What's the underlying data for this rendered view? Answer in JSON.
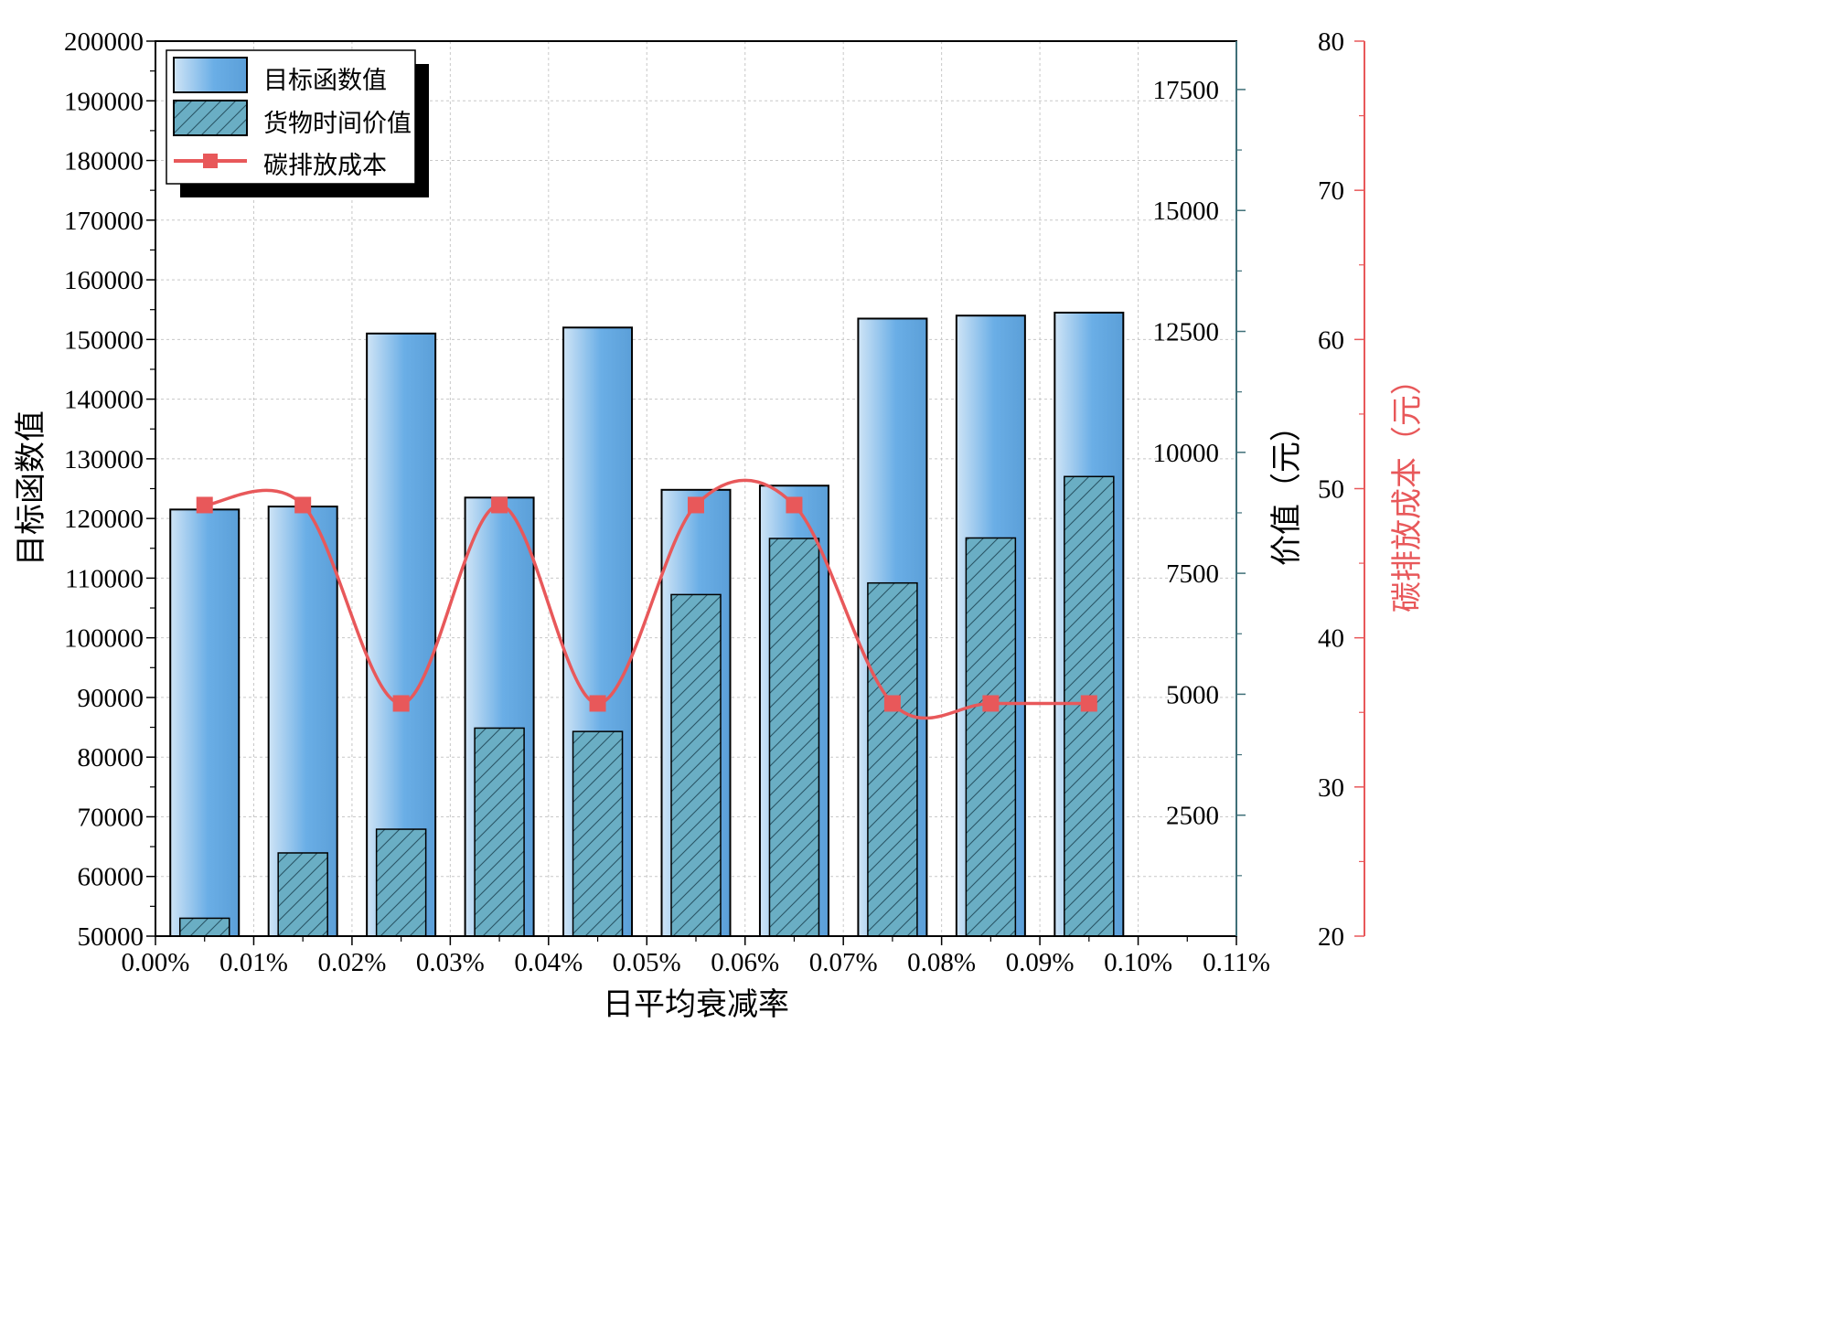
{
  "chart_data": {
    "type": "bar",
    "xlabel": "日平均衰减率",
    "ylabel": "目标函数值",
    "y2label": "价值（元）",
    "y3label": "碳排放成本（元）",
    "x_ticks": [
      "0.00%",
      "0.01%",
      "0.02%",
      "0.03%",
      "0.04%",
      "0.05%",
      "0.06%",
      "0.07%",
      "0.08%",
      "0.09%",
      "0.10%",
      "0.11%"
    ],
    "xlim": [
      0,
      0.11
    ],
    "x": [
      0.005,
      0.015,
      0.025,
      0.035,
      0.045,
      0.055,
      0.065,
      0.075,
      0.085,
      0.095
    ],
    "ylim": [
      50000,
      200000
    ],
    "y_ticks": [
      50000,
      60000,
      70000,
      80000,
      90000,
      100000,
      110000,
      120000,
      130000,
      140000,
      150000,
      160000,
      170000,
      180000,
      190000,
      200000
    ],
    "y2lim": [
      0,
      18500
    ],
    "y2_ticks": [
      2500,
      5000,
      7500,
      10000,
      12500,
      15000,
      17500
    ],
    "y3lim": [
      20,
      80
    ],
    "y3_ticks": [
      20,
      30,
      40,
      50,
      60,
      70,
      80
    ],
    "grid": true,
    "legend_position": "top-left",
    "series": [
      {
        "name": "目标函数值",
        "type": "bar",
        "axis": "left",
        "color": "#5fa8e0",
        "values": [
          121500,
          122000,
          151000,
          123500,
          152000,
          124800,
          125500,
          153500,
          154000,
          154500
        ]
      },
      {
        "name": "货物时间价值",
        "type": "bar",
        "axis": "right",
        "color": "#6aaec4",
        "pattern": "diagonal-hatch",
        "values": [
          370,
          1720,
          2210,
          4300,
          4230,
          7060,
          8220,
          7300,
          8230,
          9500
        ]
      },
      {
        "name": "碳排放成本",
        "type": "line",
        "axis": "right-outer",
        "color": "#e8585a",
        "marker": "square",
        "smooth": true,
        "values": [
          48.9,
          48.9,
          35.6,
          48.9,
          35.6,
          48.9,
          48.9,
          35.6,
          35.6,
          35.6
        ]
      }
    ]
  }
}
